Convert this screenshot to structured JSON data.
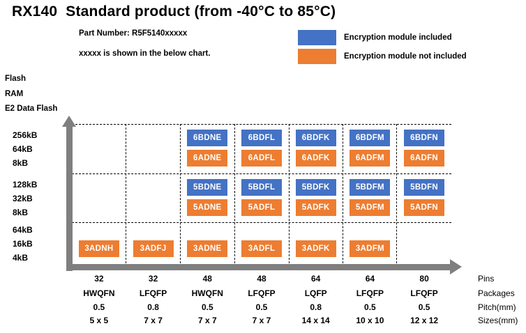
{
  "page": {
    "title": "RX140  Standard product (from -40°C to 85°C)",
    "part_number_line": "Part Number: R5F5140xxxxx",
    "note_line": "xxxxx is shown in the below chart."
  },
  "legend": {
    "items": [
      {
        "key": "encryption-included",
        "color": "#4472C4",
        "label": "Encryption module included"
      },
      {
        "key": "encryption-not-included",
        "color": "#ED7D31",
        "label": "Encryption module not included"
      }
    ]
  },
  "y_axis": {
    "header_lines": [
      "Flash",
      "RAM",
      "E2 Data Flash"
    ],
    "groups": [
      [
        "256kB",
        "64kB",
        "8kB"
      ],
      [
        "128kB",
        "32kB",
        "8kB"
      ],
      [
        "64kB",
        "16kB",
        "4kB"
      ]
    ]
  },
  "x_axis": {
    "rows": [
      {
        "label": "Pins",
        "values": [
          "32",
          "32",
          "48",
          "48",
          "64",
          "64",
          "80"
        ]
      },
      {
        "label": "Packages",
        "values": [
          "HWQFN",
          "LFQFP",
          "HWQFN",
          "LFQFP",
          "LQFP",
          "LFQFP",
          "LFQFP"
        ]
      },
      {
        "label": "Pitch(mm)",
        "values": [
          "0.5",
          "0.8",
          "0.5",
          "0.5",
          "0.8",
          "0.5",
          "0.5"
        ]
      },
      {
        "label": "Sizes(mm)",
        "values": [
          "5 x 5",
          "7 x 7",
          "7 x 7",
          "7 x 7",
          "14 x 14",
          "10 x 10",
          "12 x 12"
        ]
      }
    ]
  },
  "chart_data": {
    "type": "matrix",
    "description": "RX140 part-number suffix (xxxxx of R5F5140xxxxx) by memory configuration (rows) and package (columns)",
    "colors": {
      "encrypted": "#4472C4",
      "not_encrypted": "#ED7D31",
      "axis_arrow": "#7F7F7F",
      "grid": "#000000"
    },
    "rows": [
      {
        "memory": {
          "flash": "256kB",
          "ram": "64kB",
          "e2_data_flash": "8kB"
        },
        "cells": [
          null,
          null,
          {
            "encrypted": "6BDNE",
            "not_encrypted": "6ADNE"
          },
          {
            "encrypted": "6BDFL",
            "not_encrypted": "6ADFL"
          },
          {
            "encrypted": "6BDFK",
            "not_encrypted": "6ADFK"
          },
          {
            "encrypted": "6BDFM",
            "not_encrypted": "6ADFM"
          },
          {
            "encrypted": "6BDFN",
            "not_encrypted": "6ADFN"
          }
        ]
      },
      {
        "memory": {
          "flash": "128kB",
          "ram": "32kB",
          "e2_data_flash": "8kB"
        },
        "cells": [
          null,
          null,
          {
            "encrypted": "5BDNE",
            "not_encrypted": "5ADNE"
          },
          {
            "encrypted": "5BDFL",
            "not_encrypted": "5ADFL"
          },
          {
            "encrypted": "5BDFK",
            "not_encrypted": "5ADFK"
          },
          {
            "encrypted": "5BDFM",
            "not_encrypted": "5ADFM"
          },
          {
            "encrypted": "5BDFN",
            "not_encrypted": "5ADFN"
          }
        ]
      },
      {
        "memory": {
          "flash": "64kB",
          "ram": "16kB",
          "e2_data_flash": "4kB"
        },
        "cells": [
          {
            "not_encrypted": "3ADNH"
          },
          {
            "not_encrypted": "3ADFJ"
          },
          {
            "not_encrypted": "3ADNE"
          },
          {
            "not_encrypted": "3ADFL"
          },
          {
            "not_encrypted": "3ADFK"
          },
          {
            "not_encrypted": "3ADFM"
          },
          null
        ]
      }
    ]
  }
}
